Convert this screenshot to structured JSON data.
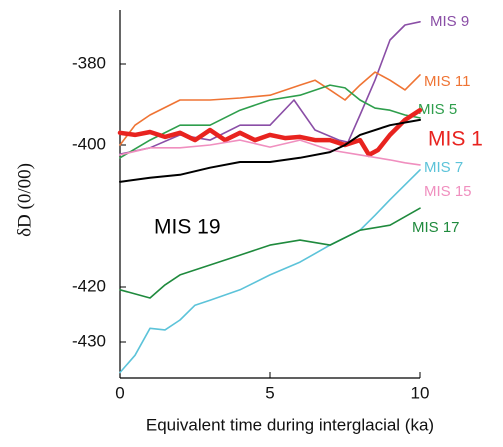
{
  "chart_data": {
    "type": "line",
    "x_label": "Equivalent time during interglacial (ka)",
    "y_label": "δD (0/00)",
    "xlim": [
      0,
      10
    ],
    "xticks": [
      0,
      5,
      10
    ],
    "ylim": [
      -436.5,
      -366.7
    ],
    "yticks": [
      -430,
      -420,
      -400,
      -380
    ],
    "series": [
      {
        "name": "MIS 9",
        "color": "#8a4ea6",
        "x": [
          0,
          1,
          2,
          3,
          4,
          5,
          5.8,
          6.5,
          7.3,
          7.6,
          8,
          8.5,
          9,
          9.5,
          10
        ],
        "values": [
          -401.3,
          -400.4,
          -397.5,
          -398.8,
          -395.1,
          -395.1,
          -388.9,
          -396.3,
          -398.8,
          -399.3,
          -392.6,
          -384.0,
          -374.1,
          -370.4,
          -369.6
        ]
      },
      {
        "name": "MIS 11",
        "color": "#ef7434",
        "x": [
          0,
          0.5,
          1,
          2,
          3,
          4,
          5,
          6,
          6.5,
          7,
          7.5,
          8,
          8.5,
          9,
          9.5,
          10
        ],
        "values": [
          -400.0,
          -395.1,
          -392.6,
          -388.9,
          -388.9,
          -388.4,
          -387.7,
          -385.2,
          -384.0,
          -386.4,
          -388.9,
          -385.2,
          -382.0,
          -384.0,
          -386.4,
          -382.7
        ]
      },
      {
        "name": "MIS 5",
        "color": "#2e9e4c",
        "x": [
          0,
          1,
          2,
          3,
          4,
          5,
          6,
          7,
          7.5,
          8,
          8.5,
          9,
          9.5,
          10
        ],
        "values": [
          -401.8,
          -398.8,
          -395.1,
          -395.1,
          -391.4,
          -388.9,
          -387.7,
          -385.2,
          -385.9,
          -388.9,
          -390.9,
          -391.4,
          -392.6,
          -393.3
        ]
      },
      {
        "name": "MIS 1",
        "color": "#e8231f",
        "x": [
          0,
          0.5,
          1,
          1.5,
          2,
          2.5,
          3,
          3.5,
          4,
          4.5,
          5,
          5.5,
          6,
          6.5,
          7,
          7.5,
          8,
          8.3,
          8.6,
          9,
          9.5,
          10
        ],
        "values": [
          -397.0,
          -397.5,
          -396.8,
          -398.0,
          -397.0,
          -398.8,
          -396.3,
          -398.8,
          -397.0,
          -398.8,
          -397.5,
          -398.3,
          -398.0,
          -398.8,
          -398.8,
          -400.0,
          -398.8,
          -401.4,
          -400.7,
          -397.5,
          -393.8,
          -391.4
        ]
      },
      {
        "name": "MIS 7",
        "color": "#5cc3d9",
        "x": [
          0,
          0.5,
          1,
          1.5,
          2,
          2.5,
          3,
          4,
          5,
          6,
          7,
          8,
          8.5,
          9,
          9.5,
          10
        ],
        "values": [
          -435.5,
          -432.4,
          -427.5,
          -427.8,
          -426.0,
          -423.3,
          -422.4,
          -420.5,
          -418.3,
          -416.5,
          -414.1,
          -412.0,
          -409.9,
          -407.7,
          -405.6,
          -403.5
        ]
      },
      {
        "name": "MIS 15",
        "color": "#f08fbf",
        "x": [
          0,
          1,
          2,
          3,
          4,
          5,
          6,
          7,
          8,
          9,
          9.5,
          10
        ],
        "values": [
          -401.4,
          -400.4,
          -400.4,
          -400.0,
          -398.8,
          -400.3,
          -398.8,
          -400.7,
          -401.4,
          -402.1,
          -402.5,
          -402.8
        ]
      },
      {
        "name": "MIS 17",
        "color": "#1f8a3d",
        "x": [
          0,
          1,
          1.5,
          2,
          3,
          4,
          5,
          6,
          7,
          8,
          9,
          10
        ],
        "values": [
          -420.5,
          -422.0,
          -419.7,
          -418.3,
          -416.9,
          -415.5,
          -414.1,
          -413.4,
          -414.1,
          -412.0,
          -411.3,
          -408.9
        ]
      },
      {
        "name": "MIS 19",
        "color": "#000000",
        "x": [
          0,
          1,
          2,
          3,
          4,
          5,
          6,
          7,
          7.5,
          8,
          9,
          10
        ],
        "values": [
          -405.2,
          -404.6,
          -404.2,
          -403.2,
          -402.4,
          -402.4,
          -401.8,
          -401.0,
          -400.0,
          -397.5,
          -395.1,
          -393.8
        ]
      }
    ]
  }
}
